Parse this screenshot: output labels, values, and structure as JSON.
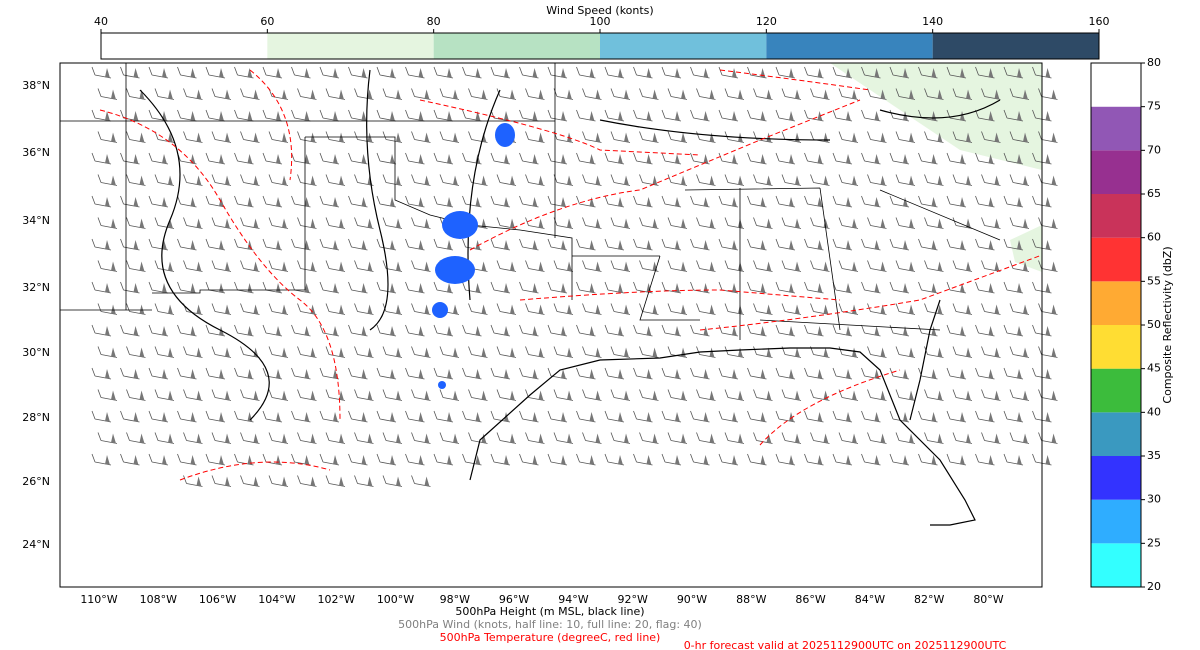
{
  "wind_colorbar": {
    "title": "Wind Speed (konts)",
    "ticks": [
      40,
      60,
      80,
      100,
      120,
      140,
      160
    ],
    "colors": [
      "#ffffff",
      "#e5f5e0",
      "#b7e2c3",
      "#70c0dc",
      "#3884bd",
      "#2e4a66"
    ]
  },
  "reflectivity_colorbar": {
    "label": "Composite Reflectivity (dbZ)",
    "ticks": [
      20,
      25,
      30,
      35,
      40,
      45,
      50,
      55,
      60,
      65,
      70,
      75,
      80
    ],
    "colors": [
      "#33ffff",
      "#2fadff",
      "#3333ff",
      "#3a99c0",
      "#3cbc3c",
      "#ffdd33",
      "#ffaa33",
      "#ff3333",
      "#c9335a",
      "#973090",
      "#9157b5",
      "#ffffff"
    ]
  },
  "map": {
    "lat_labels": [
      "24°N",
      "26°N",
      "28°N",
      "30°N",
      "32°N",
      "34°N",
      "36°N",
      "38°N"
    ],
    "lon_labels": [
      "110°W",
      "108°W",
      "106°W",
      "104°W",
      "102°W",
      "100°W",
      "98°W",
      "96°W",
      "94°W",
      "92°W",
      "90°W",
      "88°W",
      "86°W",
      "84°W",
      "82°W",
      "80°W"
    ]
  },
  "captions": {
    "height": "500hPa Height (m MSL, black line)",
    "wind": "500hPa Wind (knots, half line: 10, full line: 20, flag: 40)",
    "temperature": "500hPa Temperature (degreeC, red line)",
    "valid": "0-hr forecast valid at 2025112900UTC on 2025112900UTC"
  }
}
